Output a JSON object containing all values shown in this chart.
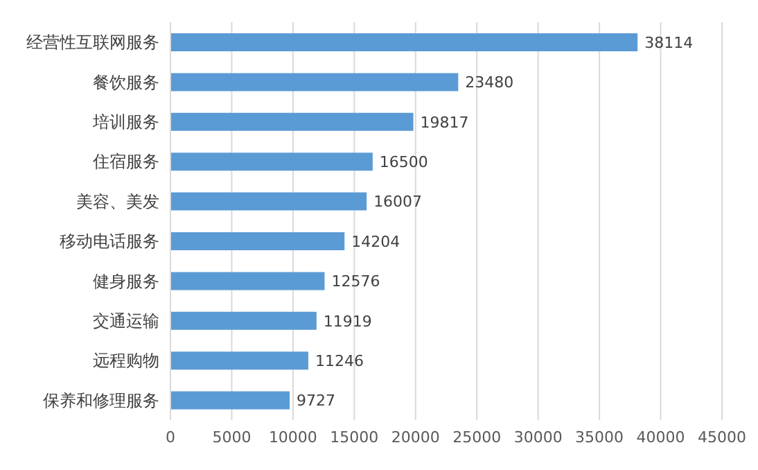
{
  "chart_data": {
    "type": "bar",
    "orientation": "horizontal",
    "categories": [
      "经营性互联网服务",
      "餐饮服务",
      "培训服务",
      "住宿服务",
      "美容、美发",
      "移动电话服务",
      "健身服务",
      "交通运输",
      "远程购物",
      "保养和修理服务"
    ],
    "values": [
      38114,
      23480,
      19817,
      16500,
      16007,
      14204,
      12576,
      11919,
      11246,
      9727
    ],
    "color": "#5b9bd5",
    "xlim": [
      0,
      45000
    ],
    "xticks": [
      0,
      5000,
      10000,
      15000,
      20000,
      25000,
      30000,
      35000,
      40000,
      45000
    ],
    "grid": "x",
    "data_labels": true
  }
}
